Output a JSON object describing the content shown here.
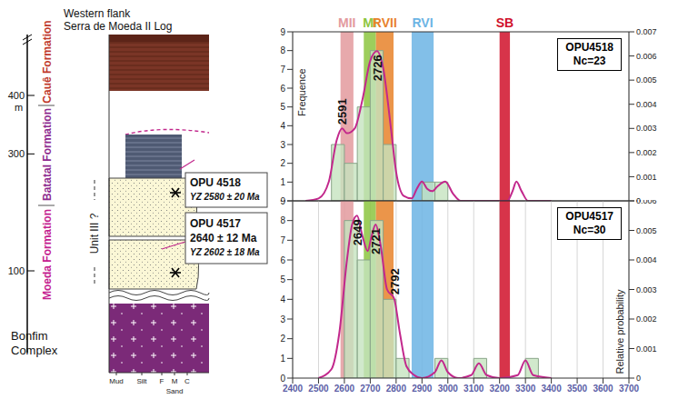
{
  "strat_log": {
    "title": "Western flank",
    "subtitle": "Serra de Moeda II Log",
    "scale": {
      "ticks": [
        100,
        300,
        400
      ],
      "unit": "m"
    },
    "formations": [
      {
        "label": "Cauê Formation",
        "color": "#c0392b"
      },
      {
        "label": "Batatal Formation",
        "color": "#8e2a8e"
      },
      {
        "label": "Moeda Formation",
        "color": "#c4208e"
      }
    ],
    "unit_label": "Unit III ?",
    "basement": "Bonfim Complex",
    "samples": [
      {
        "label": "OPU 4518",
        "lines": [
          "YZ 2580 ± 20 Ma"
        ]
      },
      {
        "label": "OPU 4517",
        "lines": [
          "2640 ± 12 Ma",
          "YZ 2602 ± 18 Ma"
        ]
      }
    ],
    "grain_size": [
      "Mud",
      "Silt",
      "F",
      "M",
      "C"
    ],
    "grain_size_label": "Sand"
  },
  "chart_data": [
    {
      "type": "histogram",
      "title": "OPU4518",
      "subtitle": "Nc=23",
      "bins": [
        2550,
        2600,
        2650,
        2700,
        2750,
        2800,
        2850,
        2900,
        2950,
        3000
      ],
      "counts": [
        3,
        2,
        5,
        8,
        3,
        0,
        0,
        1,
        1
      ],
      "color": "#c5e3bf",
      "curve": {
        "x": [
          2450,
          2500,
          2540,
          2570,
          2591,
          2610,
          2640,
          2670,
          2700,
          2726,
          2750,
          2780,
          2800,
          2830,
          2860,
          2880,
          2900,
          2920,
          2940,
          2960,
          2990,
          3020,
          3050,
          3230,
          3250,
          3265,
          3285,
          3310,
          3400
        ],
        "values": [
          0,
          0.0001,
          0.0008,
          0.0025,
          0.003,
          0.0028,
          0.003,
          0.0042,
          0.0058,
          0.0062,
          0.0055,
          0.003,
          0.0012,
          0.0002,
          0.0001,
          0.0005,
          0.0008,
          0.0005,
          0.0004,
          0.0006,
          0.0008,
          0.0003,
          0,
          0,
          0.0004,
          0.0008,
          0.0004,
          0,
          0
        ],
        "color": "#c2288c",
        "axis": "y2"
      },
      "peak_labels": [
        2591,
        2726
      ],
      "bands": [
        {
          "label": "MII",
          "x0": 2585,
          "x1": 2635,
          "color": "#e39a9e"
        },
        {
          "label": "MI",
          "x0": 2675,
          "x1": 2722,
          "color": "#8cc63f"
        },
        {
          "label": "RVII",
          "x0": 2722,
          "x1": 2790,
          "color": "#e8822a"
        },
        {
          "label": "RVI",
          "x0": 2860,
          "x1": 2945,
          "color": "#6cb4e4"
        },
        {
          "label": "SB",
          "x0": 3200,
          "x1": 3240,
          "color": "#d0102a"
        }
      ],
      "xlim": [
        2400,
        3700
      ],
      "xticks": [
        2400,
        2500,
        2600,
        2700,
        2800,
        2900,
        3000,
        3100,
        3200,
        3300,
        3400,
        3500,
        3600,
        3700
      ],
      "ylim": [
        0,
        9
      ],
      "yticks": [
        0,
        1,
        2,
        3,
        4,
        5,
        6,
        7,
        8,
        9
      ],
      "y2lim": [
        0,
        0.007
      ],
      "y2ticks": [
        0,
        0.001,
        0.002,
        0.003,
        0.004,
        0.005,
        0.006,
        0.007
      ],
      "ylabel": "Frequence",
      "grid": true,
      "tick_labels": "y"
    },
    {
      "type": "histogram",
      "title": "OPU4517",
      "subtitle": "Nc=30",
      "bins": [
        2600,
        2650,
        2700,
        2750,
        2800,
        2850,
        2900,
        2950,
        3000,
        3050,
        3100,
        3150,
        3200,
        3250,
        3300,
        3350
      ],
      "counts": [
        8,
        6,
        8,
        4,
        1,
        0,
        0,
        1,
        0,
        0,
        1,
        0,
        0,
        0,
        1
      ],
      "color": "#c5e3bf",
      "curve": {
        "x": [
          2500,
          2550,
          2580,
          2610,
          2630,
          2649,
          2670,
          2690,
          2705,
          2721,
          2740,
          2765,
          2792,
          2815,
          2840,
          2870,
          2900,
          2950,
          2975,
          3000,
          3040,
          3090,
          3120,
          3150,
          3200,
          3270,
          3300,
          3330,
          3400
        ],
        "values": [
          0,
          0.0003,
          0.0015,
          0.004,
          0.0052,
          0.0055,
          0.0048,
          0.0043,
          0.0048,
          0.0052,
          0.0045,
          0.003,
          0.0027,
          0.0015,
          0.0004,
          0.0001,
          0,
          0.0002,
          0.0006,
          0.0002,
          0,
          0.0001,
          0.0005,
          0.0001,
          0,
          0.0001,
          0.0006,
          0.0001,
          0
        ],
        "color": "#c2288c",
        "axis": "y2"
      },
      "peak_labels": [
        2649,
        2721,
        2792
      ],
      "xlim": [
        2400,
        3700
      ],
      "xticks": [
        2400,
        2500,
        2600,
        2700,
        2800,
        2900,
        3000,
        3100,
        3200,
        3300,
        3400,
        3500,
        3600,
        3700
      ],
      "ylim": [
        0,
        9
      ],
      "yticks": [
        0,
        1,
        2,
        3,
        4,
        5,
        6,
        7,
        8,
        9
      ],
      "y2lim": [
        0,
        0.006
      ],
      "y2ticks": [
        0,
        0.001,
        0.002,
        0.003,
        0.004,
        0.005,
        0.006
      ],
      "y2label": "Relative probability",
      "grid": true
    }
  ]
}
